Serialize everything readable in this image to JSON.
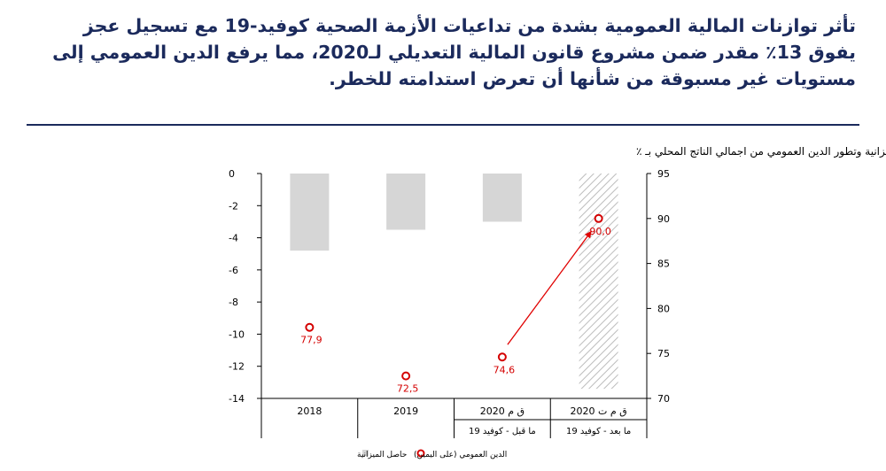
{
  "headline": {
    "lines": [
      "تأثر توازنات المالية العمومية بشدة من تداعيات الأزمة الصحية كوفيد-19 مع تسجيل عجز",
      "يفوق 13٪ مقدر ضمن مشروع قانون المالية التعديلي لـ2020، مما يرفع الدين العمومي إلى",
      "مستويات غير مسبوقة من شأنها أن تعرض استدامته للخطر."
    ]
  },
  "colors": {
    "headline": "#1b2a5c",
    "rule": "#1b2a5c",
    "bars": "#d6d6d6",
    "hatch_fill": "#ffffff",
    "hatch_lines": "#bdbdbd",
    "debt_marker": "#d40000",
    "arrow": "#e00000",
    "axis": "#000000"
  },
  "chart_data": {
    "type": "bar",
    "title": "رسم بياني: توقعات حاصل الميزانية وتطور الدين العمومي من اجمالي الناتج المحلي  بـ ٪",
    "categories": [
      {
        "main": "2018",
        "sub": ""
      },
      {
        "main": "2019",
        "sub": ""
      },
      {
        "main": "ق م 2020",
        "sub": "ما قبل - كوفيد 19"
      },
      {
        "main": "ق م ت 2020",
        "sub": "ما بعد - كوفيد 19"
      }
    ],
    "series": [
      {
        "name": "حاصل الميزانية",
        "axis": "left",
        "mark": "bar",
        "values": [
          -4.8,
          -3.5,
          -3.0,
          -13.4
        ],
        "hatched": [
          false,
          false,
          false,
          true
        ]
      },
      {
        "name": "الدين العمومي (على اليمين)",
        "axis": "right",
        "mark": "circle",
        "values": [
          77.9,
          72.5,
          74.6,
          90.0
        ],
        "labels": [
          "77,9",
          "72,5",
          "74,6",
          "90,0"
        ]
      }
    ],
    "left_axis": {
      "min": -14,
      "max": 0,
      "ticks": [
        "0",
        "-2",
        "-4",
        "-6",
        "-8",
        "-10",
        "-12",
        "-14"
      ]
    },
    "right_axis": {
      "min": 70,
      "max": 95,
      "ticks": [
        "95",
        "90",
        "85",
        "80",
        "75",
        "70"
      ]
    },
    "annotation": "arrow from 2020 pre-COVID debt to 2020 post-COVID debt",
    "legend_position": "bottom-center",
    "grid": false
  }
}
